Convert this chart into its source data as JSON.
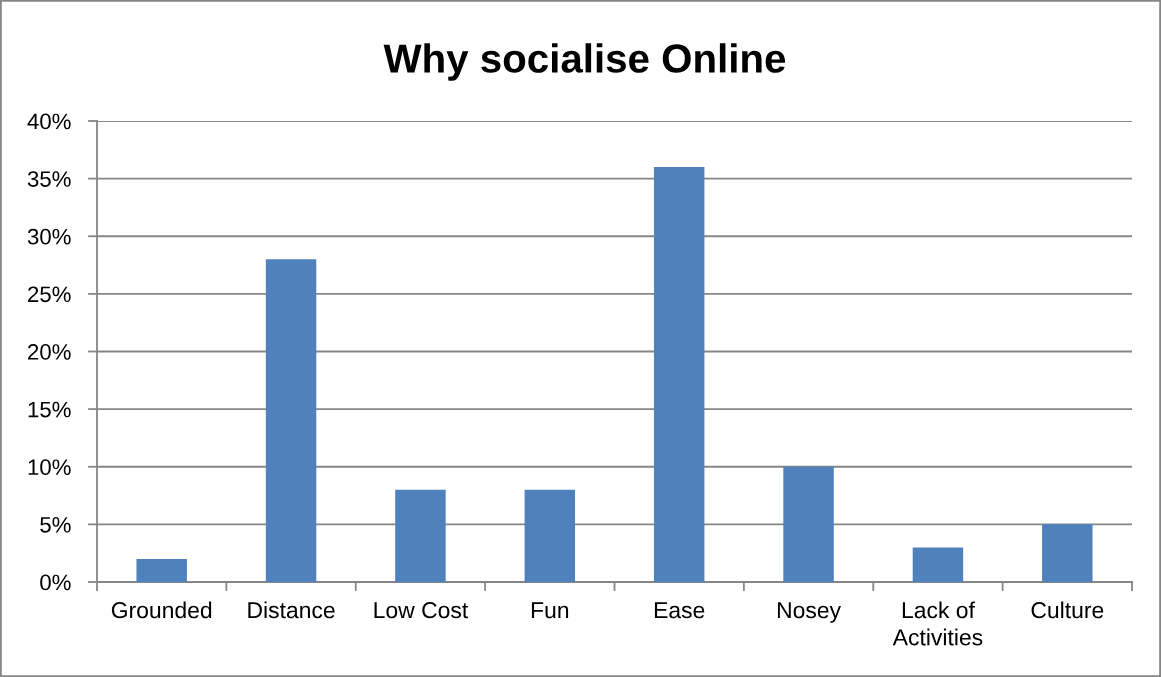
{
  "chart_data": {
    "type": "bar",
    "title": "Why socialise Online",
    "categories": [
      "Grounded",
      "Distance",
      "Low Cost",
      "Fun",
      "Ease",
      "Nosey",
      "Lack of\nActivities",
      "Culture"
    ],
    "values": [
      2,
      28,
      8,
      8,
      36,
      10,
      3,
      5
    ],
    "color": "#4f81bd",
    "ylim": [
      0,
      40
    ],
    "yticks": [
      {
        "value": 0,
        "label": "0%"
      },
      {
        "value": 5,
        "label": "5%"
      },
      {
        "value": 10,
        "label": "10%"
      },
      {
        "value": 15,
        "label": "15%"
      },
      {
        "value": 20,
        "label": "20%"
      },
      {
        "value": 25,
        "label": "25%"
      },
      {
        "value": 30,
        "label": "30%"
      },
      {
        "value": 35,
        "label": "35%"
      },
      {
        "value": 40,
        "label": "40%"
      }
    ],
    "grid": "y"
  }
}
